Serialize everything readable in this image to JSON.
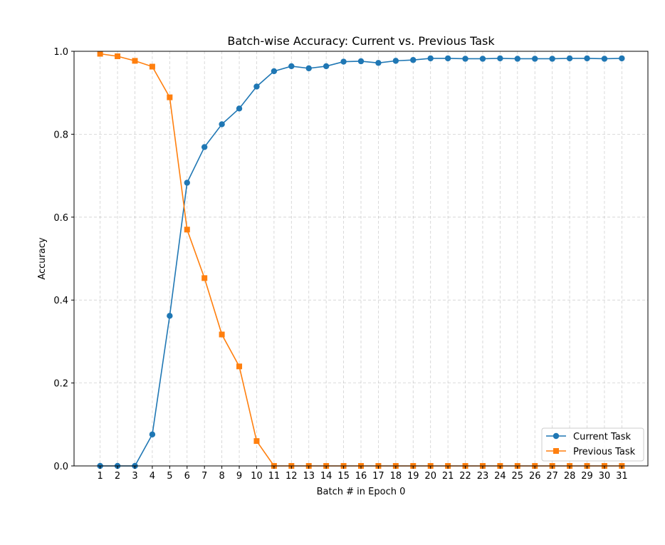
{
  "chart_data": {
    "type": "line",
    "title": "Batch-wise Accuracy: Current vs. Previous Task",
    "xlabel": "Batch # in Epoch 0",
    "ylabel": "Accuracy",
    "x": [
      1,
      2,
      3,
      4,
      5,
      6,
      7,
      8,
      9,
      10,
      11,
      12,
      13,
      14,
      15,
      16,
      17,
      18,
      19,
      20,
      21,
      22,
      23,
      24,
      25,
      26,
      27,
      28,
      29,
      30,
      31
    ],
    "xlim": [
      -0.5,
      32.5
    ],
    "ylim": [
      0.0,
      1.0
    ],
    "yticks": [
      "0.0",
      "0.2",
      "0.4",
      "0.6",
      "0.8",
      "1.0"
    ],
    "xticks": [
      "1",
      "2",
      "3",
      "4",
      "5",
      "6",
      "7",
      "8",
      "9",
      "10",
      "11",
      "12",
      "13",
      "14",
      "15",
      "16",
      "17",
      "18",
      "19",
      "20",
      "21",
      "22",
      "23",
      "24",
      "25",
      "26",
      "27",
      "28",
      "29",
      "30",
      "31"
    ],
    "grid": true,
    "legend_position": "lower-right",
    "series": [
      {
        "name": "Current Task",
        "color": "#1f77b4",
        "marker": "circle",
        "values": [
          0.0,
          0.0,
          0.0,
          0.076,
          0.362,
          0.683,
          0.769,
          0.824,
          0.862,
          0.915,
          0.952,
          0.964,
          0.959,
          0.964,
          0.975,
          0.976,
          0.972,
          0.977,
          0.979,
          0.983,
          0.983,
          0.982,
          0.982,
          0.983,
          0.982,
          0.982,
          0.982,
          0.983,
          0.983,
          0.982,
          0.983
        ]
      },
      {
        "name": "Previous Task",
        "color": "#ff7f0e",
        "marker": "square",
        "values": [
          0.994,
          0.988,
          0.977,
          0.963,
          0.889,
          0.57,
          0.453,
          0.317,
          0.24,
          0.06,
          0.0,
          0.0,
          0.0,
          0.0,
          0.0,
          0.0,
          0.0,
          0.0,
          0.0,
          0.0,
          0.0,
          0.0,
          0.0,
          0.0,
          0.0,
          0.0,
          0.0,
          0.0,
          0.0,
          0.0,
          0.0
        ]
      }
    ]
  }
}
